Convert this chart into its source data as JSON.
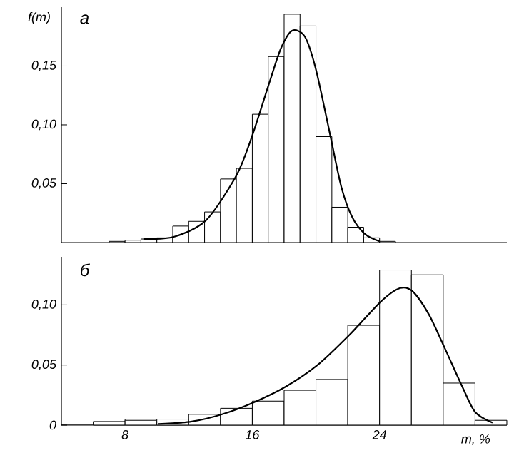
{
  "chart_data": [
    {
      "type": "histogram",
      "ylabel": "f(m)",
      "annotations": [
        "а"
      ],
      "xlim": [
        4,
        32
      ],
      "ylim": [
        0,
        0.2
      ],
      "tick_labels": "y",
      "grid": false,
      "marker": "none",
      "yticks": [
        {
          "value": 0.05,
          "label": "0,05"
        },
        {
          "value": 0.1,
          "label": "0,10"
        },
        {
          "value": 0.15,
          "label": "0,15"
        }
      ],
      "series": [
        {
          "color": "#000000",
          "bins": [
            7,
            8,
            9,
            10,
            11,
            12,
            13,
            14,
            15,
            16,
            17,
            18,
            19,
            20,
            21,
            22,
            23,
            24,
            25
          ],
          "values": [
            0.001,
            0.002,
            0.003,
            0.004,
            0.014,
            0.018,
            0.026,
            0.054,
            0.063,
            0.109,
            0.158,
            0.194,
            0.184,
            0.09,
            0.03,
            0.013,
            0.004,
            0.001
          ]
        },
        {
          "type": "line",
          "color": "#000000",
          "x": [
            9.2,
            11.1,
            13.1,
            15.0,
            16.0,
            17.1,
            17.8,
            18.5,
            19.3,
            20.0,
            20.9,
            21.6,
            22.3,
            23.1,
            24.0
          ],
          "values": [
            0.003,
            0.005,
            0.019,
            0.057,
            0.091,
            0.137,
            0.165,
            0.18,
            0.175,
            0.147,
            0.091,
            0.047,
            0.021,
            0.007,
            0.001
          ]
        }
      ]
    },
    {
      "type": "histogram",
      "xlabel": "m, %",
      "annotations": [
        "б"
      ],
      "xlim": [
        4,
        32
      ],
      "ylim": [
        0,
        0.14
      ],
      "grid": false,
      "marker": "none",
      "xticks": [
        8,
        16,
        24
      ],
      "yticks": [
        0,
        {
          "value": 0.05,
          "label": "0,05"
        },
        {
          "value": 0.1,
          "label": "0,10"
        }
      ],
      "series": [
        {
          "color": "#000000",
          "bins": [
            6,
            8,
            10,
            12,
            14,
            16,
            18,
            20,
            22,
            24,
            26,
            28,
            30,
            32
          ],
          "values": [
            0.003,
            0.004,
            0.005,
            0.009,
            0.014,
            0.02,
            0.029,
            0.038,
            0.083,
            0.129,
            0.125,
            0.035,
            0.004
          ]
        },
        {
          "type": "line",
          "color": "#000000",
          "x": [
            10.1,
            12.2,
            14.1,
            16.1,
            18.1,
            20.1,
            22.1,
            24.1,
            25.3,
            26.1,
            27.1,
            28.1,
            29.2,
            30.0,
            31.1
          ],
          "values": [
            0.001,
            0.003,
            0.009,
            0.019,
            0.032,
            0.05,
            0.075,
            0.103,
            0.114,
            0.111,
            0.092,
            0.064,
            0.032,
            0.011,
            0.002
          ]
        }
      ]
    }
  ]
}
